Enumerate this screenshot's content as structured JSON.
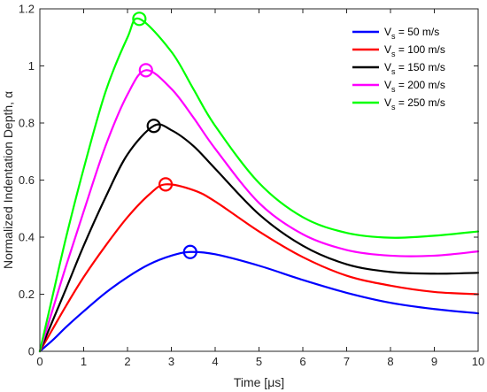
{
  "chart_data": {
    "type": "line",
    "xlabel": "Time [μs]",
    "ylabel": "Normalized Indentation Depth, α",
    "xlim": [
      0,
      10
    ],
    "ylim": [
      0,
      1.2
    ],
    "xticks": [
      "0",
      "1",
      "2",
      "3",
      "4",
      "5",
      "6",
      "7",
      "8",
      "9",
      "10"
    ],
    "yticks": [
      "0",
      "0.2",
      "0.4",
      "0.6",
      "0.8",
      "1",
      "1.2"
    ],
    "grid": false,
    "legend_position": "top-right",
    "series": [
      {
        "name": "V_s = 50 m/s",
        "legend_main": "V",
        "legend_sub": "s",
        "legend_rest": " = 50 m/s",
        "color": "#0000ff",
        "x": [
          0,
          0.3,
          0.6,
          1.0,
          1.5,
          2.0,
          2.5,
          3.0,
          3.43,
          4.0,
          5.0,
          6.0,
          7.0,
          8.0,
          9.0,
          10.0
        ],
        "y": [
          0,
          0.04,
          0.085,
          0.14,
          0.205,
          0.26,
          0.305,
          0.335,
          0.348,
          0.34,
          0.3,
          0.25,
          0.205,
          0.17,
          0.148,
          0.133
        ],
        "peak": [
          3.43,
          0.348
        ]
      },
      {
        "name": "V_s = 100 m/s",
        "legend_main": "V",
        "legend_sub": "s",
        "legend_rest": " = 100 m/s",
        "color": "#ff0000",
        "x": [
          0,
          0.3,
          0.6,
          1.0,
          1.5,
          2.0,
          2.5,
          2.87,
          3.5,
          4.0,
          5.0,
          6.0,
          7.0,
          8.0,
          9.0,
          10.0
        ],
        "y": [
          0,
          0.08,
          0.16,
          0.26,
          0.37,
          0.47,
          0.55,
          0.585,
          0.565,
          0.525,
          0.42,
          0.33,
          0.265,
          0.23,
          0.208,
          0.2
        ],
        "peak": [
          2.87,
          0.585
        ]
      },
      {
        "name": "V_s = 150 m/s",
        "legend_main": "V",
        "legend_sub": "s",
        "legend_rest": " = 150 m/s",
        "color": "#000000",
        "x": [
          0,
          0.3,
          0.6,
          1.0,
          1.5,
          2.0,
          2.6,
          3.0,
          3.5,
          4.0,
          5.0,
          6.0,
          7.0,
          8.0,
          9.0,
          10.0
        ],
        "y": [
          0,
          0.11,
          0.22,
          0.37,
          0.54,
          0.69,
          0.79,
          0.775,
          0.72,
          0.64,
          0.48,
          0.37,
          0.305,
          0.278,
          0.272,
          0.275
        ],
        "peak": [
          2.6,
          0.79
        ]
      },
      {
        "name": "V_s = 200 m/s",
        "legend_main": "V",
        "legend_sub": "s",
        "legend_rest": " = 200 m/s",
        "color": "#ff00ff",
        "x": [
          0,
          0.3,
          0.6,
          1.0,
          1.5,
          2.0,
          2.42,
          3.0,
          3.5,
          4.0,
          5.0,
          6.0,
          7.0,
          8.0,
          9.0,
          10.0
        ],
        "y": [
          0,
          0.15,
          0.3,
          0.49,
          0.72,
          0.9,
          0.985,
          0.92,
          0.82,
          0.71,
          0.52,
          0.41,
          0.355,
          0.335,
          0.335,
          0.35
        ],
        "peak": [
          2.42,
          0.985
        ]
      },
      {
        "name": "V_s = 250 m/s",
        "legend_main": "V",
        "legend_sub": "s",
        "legend_rest": " = 250 m/s",
        "color": "#00ff00",
        "x": [
          0,
          0.3,
          0.6,
          1.0,
          1.5,
          2.0,
          2.27,
          3.0,
          3.5,
          4.0,
          5.0,
          6.0,
          7.0,
          8.0,
          9.0,
          10.0
        ],
        "y": [
          0,
          0.2,
          0.4,
          0.64,
          0.91,
          1.1,
          1.165,
          1.05,
          0.92,
          0.79,
          0.59,
          0.47,
          0.415,
          0.398,
          0.405,
          0.42
        ],
        "peak": [
          2.27,
          1.165
        ]
      }
    ]
  }
}
